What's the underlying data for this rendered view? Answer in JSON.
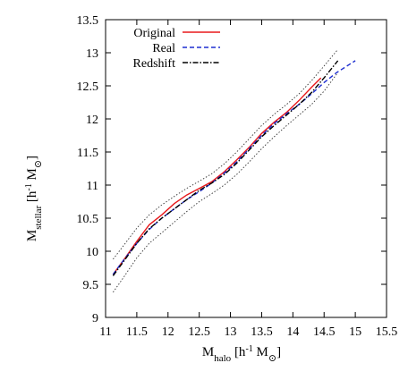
{
  "chart_data": {
    "type": "line",
    "title": "",
    "xlabel": {
      "main": "M",
      "sub": "halo",
      "unit_pre": " [h",
      "unit_sup": "-1",
      "unit_m": " M",
      "unit_sun": "⊙",
      "unit_post": "]"
    },
    "ylabel": {
      "main": "M",
      "sub": "stellar",
      "unit_pre": " [h",
      "unit_sup": "-1",
      "unit_m": " M",
      "unit_sun": "⊙",
      "unit_post": "]"
    },
    "xlim": [
      11,
      15.5
    ],
    "ylim": [
      9,
      13.5
    ],
    "xticks": [
      "11",
      "11.5",
      "12",
      "12.5",
      "13",
      "13.5",
      "14",
      "14.5",
      "15",
      "15.5"
    ],
    "yticks": [
      "9",
      "9.5",
      "10",
      "10.5",
      "11",
      "11.5",
      "12",
      "12.5",
      "13",
      "13.5"
    ],
    "legend_position": "top-left",
    "series": [
      {
        "name": "Original",
        "color": "#e8191c",
        "style": "solid",
        "x": [
          11.12,
          11.3,
          11.5,
          11.7,
          11.9,
          12.1,
          12.3,
          12.5,
          12.7,
          12.9,
          13.1,
          13.3,
          13.5,
          13.7,
          13.9,
          14.1,
          14.3,
          14.45
        ],
        "y": [
          9.65,
          9.88,
          10.15,
          10.4,
          10.55,
          10.72,
          10.85,
          10.95,
          11.05,
          11.2,
          11.38,
          11.57,
          11.78,
          11.95,
          12.1,
          12.28,
          12.48,
          12.62
        ]
      },
      {
        "name": "Real",
        "color": "#1f2fd0",
        "style": "dashed",
        "x": [
          11.12,
          11.3,
          11.5,
          11.7,
          11.9,
          12.1,
          12.3,
          12.5,
          12.7,
          12.9,
          13.1,
          13.3,
          13.5,
          13.7,
          13.9,
          14.1,
          14.3,
          14.5,
          14.7,
          15.0
        ],
        "y": [
          9.65,
          9.88,
          10.12,
          10.33,
          10.5,
          10.64,
          10.78,
          10.9,
          11.03,
          11.18,
          11.35,
          11.55,
          11.75,
          11.93,
          12.08,
          12.22,
          12.38,
          12.55,
          12.7,
          12.88
        ]
      },
      {
        "name": "Redshift",
        "color": "#000000",
        "style": "dashdot",
        "x": [
          11.12,
          11.3,
          11.5,
          11.7,
          11.9,
          12.1,
          12.3,
          12.5,
          12.7,
          12.9,
          13.1,
          13.3,
          13.5,
          13.7,
          13.9,
          14.1,
          14.3,
          14.5,
          14.72
        ],
        "y": [
          9.63,
          9.86,
          10.12,
          10.34,
          10.5,
          10.64,
          10.78,
          10.92,
          11.03,
          11.16,
          11.33,
          11.53,
          11.73,
          11.9,
          12.06,
          12.22,
          12.4,
          12.62,
          12.88
        ]
      }
    ],
    "envelope": {
      "color": "#333333",
      "style": "dotted",
      "upper": {
        "x": [
          11.12,
          11.3,
          11.5,
          11.7,
          11.9,
          12.1,
          12.3,
          12.5,
          12.7,
          12.9,
          13.1,
          13.3,
          13.5,
          13.7,
          13.9,
          14.1,
          14.3,
          14.5,
          14.72
        ],
        "y": [
          9.88,
          10.1,
          10.35,
          10.55,
          10.7,
          10.83,
          10.95,
          11.06,
          11.17,
          11.32,
          11.5,
          11.7,
          11.9,
          12.07,
          12.22,
          12.38,
          12.58,
          12.8,
          13.05
        ]
      },
      "lower": {
        "x": [
          11.12,
          11.3,
          11.5,
          11.7,
          11.9,
          12.1,
          12.3,
          12.5,
          12.7,
          12.9,
          13.1,
          13.3,
          13.5,
          13.7,
          13.9,
          14.1,
          14.3,
          14.5,
          14.72
        ],
        "y": [
          9.38,
          9.62,
          9.9,
          10.12,
          10.28,
          10.44,
          10.6,
          10.75,
          10.87,
          11.0,
          11.16,
          11.35,
          11.55,
          11.73,
          11.9,
          12.06,
          12.22,
          12.42,
          12.7
        ]
      }
    },
    "grid": false
  }
}
